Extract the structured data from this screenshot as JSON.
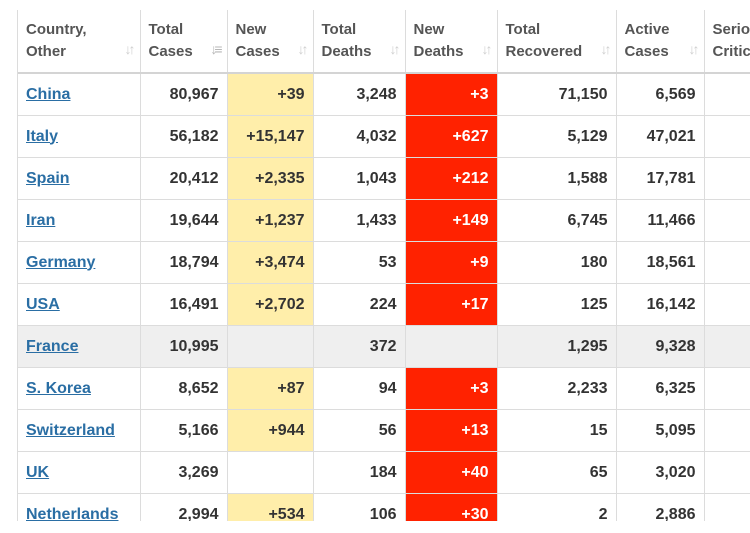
{
  "colors": {
    "new_cases_bg": "#ffeeaa",
    "new_deaths_bg": "#ff2200",
    "link": "#2a6ea4",
    "highlight_row": "#efefef"
  },
  "table": {
    "headers": [
      {
        "line1": "Country,",
        "line2": "Other",
        "sort_icon": "sort-arrows-icon"
      },
      {
        "line1": "Total",
        "line2": "Cases",
        "sort_icon": "sort-desc-icon"
      },
      {
        "line1": "New",
        "line2": "Cases",
        "sort_icon": "sort-arrows-icon"
      },
      {
        "line1": "Total",
        "line2": "Deaths",
        "sort_icon": "sort-arrows-icon"
      },
      {
        "line1": "New",
        "line2": "Deaths",
        "sort_icon": "sort-arrows-icon"
      },
      {
        "line1": "Total",
        "line2": "Recovered",
        "sort_icon": "sort-arrows-icon"
      },
      {
        "line1": "Active",
        "line2": "Cases",
        "sort_icon": "sort-arrows-icon"
      },
      {
        "line1": "Seriou",
        "line2": "Critic",
        "sort_icon": ""
      }
    ],
    "rows": [
      {
        "country": "China",
        "total_cases": "80,967",
        "new_cases": "+39",
        "total_deaths": "3,248",
        "new_deaths": "+3",
        "total_recovered": "71,150",
        "active_cases": "6,569",
        "serious": ""
      },
      {
        "country": "Italy",
        "total_cases": "56,182",
        "new_cases": "+15,147",
        "total_deaths": "4,032",
        "new_deaths": "+627",
        "total_recovered": "5,129",
        "active_cases": "47,021",
        "serious": ""
      },
      {
        "country": "Spain",
        "total_cases": "20,412",
        "new_cases": "+2,335",
        "total_deaths": "1,043",
        "new_deaths": "+212",
        "total_recovered": "1,588",
        "active_cases": "17,781",
        "serious": ""
      },
      {
        "country": "Iran",
        "total_cases": "19,644",
        "new_cases": "+1,237",
        "total_deaths": "1,433",
        "new_deaths": "+149",
        "total_recovered": "6,745",
        "active_cases": "11,466",
        "serious": ""
      },
      {
        "country": "Germany",
        "total_cases": "18,794",
        "new_cases": "+3,474",
        "total_deaths": "53",
        "new_deaths": "+9",
        "total_recovered": "180",
        "active_cases": "18,561",
        "serious": ""
      },
      {
        "country": "USA",
        "total_cases": "16,491",
        "new_cases": "+2,702",
        "total_deaths": "224",
        "new_deaths": "+17",
        "total_recovered": "125",
        "active_cases": "16,142",
        "serious": ""
      },
      {
        "country": "France",
        "total_cases": "10,995",
        "new_cases": "",
        "total_deaths": "372",
        "new_deaths": "",
        "total_recovered": "1,295",
        "active_cases": "9,328",
        "serious": "",
        "highlighted": true
      },
      {
        "country": "S. Korea",
        "total_cases": "8,652",
        "new_cases": "+87",
        "total_deaths": "94",
        "new_deaths": "+3",
        "total_recovered": "2,233",
        "active_cases": "6,325",
        "serious": ""
      },
      {
        "country": "Switzerland",
        "total_cases": "5,166",
        "new_cases": "+944",
        "total_deaths": "56",
        "new_deaths": "+13",
        "total_recovered": "15",
        "active_cases": "5,095",
        "serious": ""
      },
      {
        "country": "UK",
        "total_cases": "3,269",
        "new_cases": "",
        "total_deaths": "184",
        "new_deaths": "+40",
        "total_recovered": "65",
        "active_cases": "3,020",
        "serious": ""
      },
      {
        "country": "Netherlands",
        "total_cases": "2,994",
        "new_cases": "+534",
        "total_deaths": "106",
        "new_deaths": "+30",
        "total_recovered": "2",
        "active_cases": "2,886",
        "serious": ""
      }
    ]
  }
}
